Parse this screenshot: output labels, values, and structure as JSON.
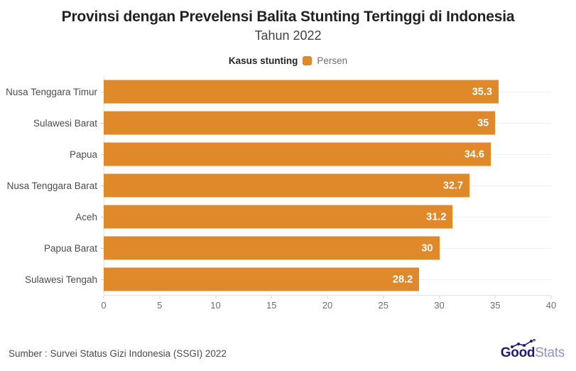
{
  "header": {
    "title": "Provinsi dengan Prevelensi Balita Stunting Tertinggi di Indonesia",
    "subtitle": "Tahun 2022"
  },
  "legend": {
    "label": "Kasus stunting",
    "series": "Persen"
  },
  "chart_data": {
    "type": "bar",
    "orientation": "horizontal",
    "title": "Provinsi dengan Prevelensi Balita Stunting Tertinggi di Indonesia",
    "subtitle": "Tahun 2022",
    "categories": [
      "Nusa Tenggara Timur",
      "Sulawesi Barat",
      "Papua",
      "Nusa Tenggara Barat",
      "Aceh",
      "Papua Barat",
      "Sulawesi Tengah"
    ],
    "values": [
      35.3,
      35,
      34.6,
      32.7,
      31.2,
      30,
      28.2
    ],
    "series_name": "Persen",
    "series_group_label": "Kasus stunting",
    "xlabel": "",
    "ylabel": "",
    "xlim": [
      0,
      40
    ],
    "xticks": [
      0,
      5,
      10,
      15,
      20,
      25,
      30,
      35,
      40
    ],
    "grid": "row-lines-horizontal",
    "legend_position": "top-center",
    "value_labels": "inside-end-white-bold",
    "bar_color": "#e0892a",
    "value_label_color": "#ffffff"
  },
  "footer": {
    "source": "Sumber : Survei Status Gizi Indonesia (SSGI) 2022",
    "brand": {
      "good": "Good",
      "stats": "Stats"
    }
  },
  "colors": {
    "bar": "#e0892a",
    "title": "#222222",
    "grid": "#ededed",
    "brand_navy": "#201c6e",
    "brand_light": "#8f94c6"
  }
}
